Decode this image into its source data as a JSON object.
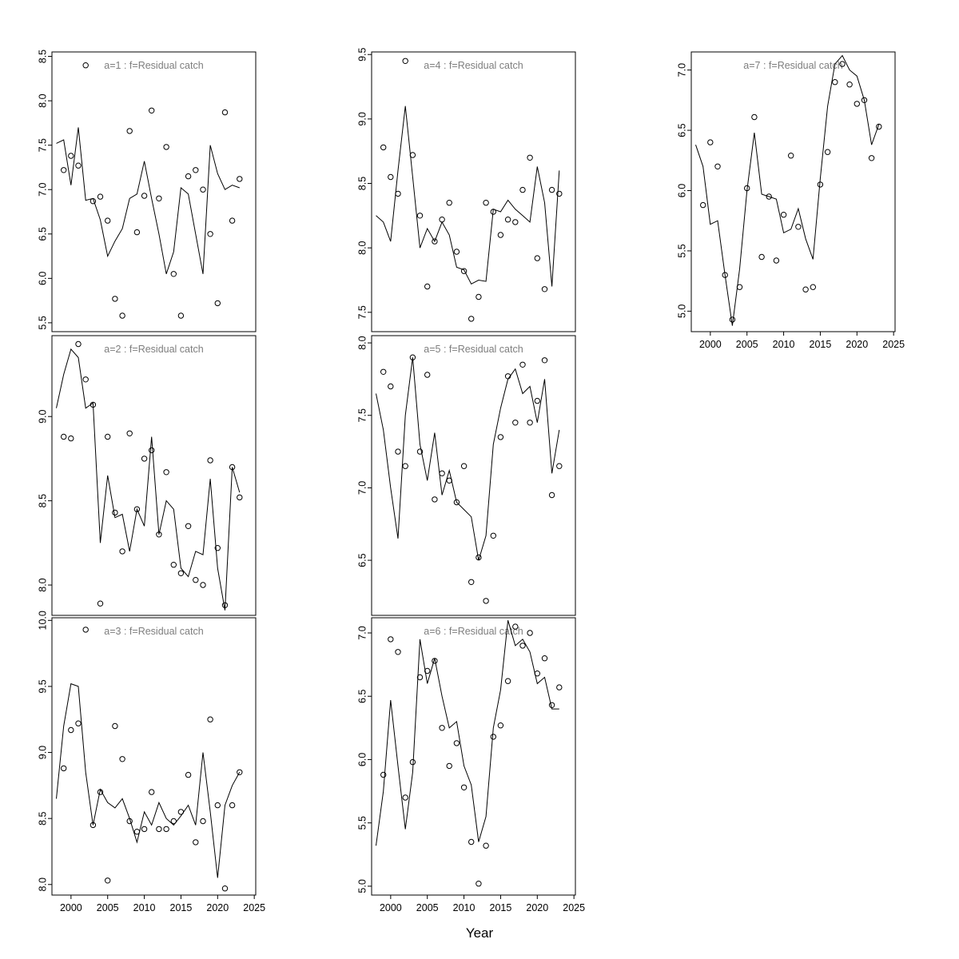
{
  "figure": {
    "xlabel": "Year"
  },
  "chart_data": {
    "type": "line",
    "marker": "open-circle",
    "line_color": "#000000",
    "point_color": "#000000",
    "title_color": "#7e7e7e",
    "grid": false,
    "xlabel": "Year",
    "xlim": [
      1997.4,
      2025.2
    ],
    "xticks": [
      2000,
      2005,
      2010,
      2015,
      2020,
      2025
    ],
    "point_years": [
      1999,
      2000,
      2001,
      2002,
      2003,
      2004,
      2005,
      2006,
      2007,
      2008,
      2009,
      2010,
      2011,
      2012,
      2013,
      2014,
      2015,
      2016,
      2017,
      2018,
      2019,
      2020,
      2021,
      2022,
      2023
    ],
    "line_years": [
      1998,
      1999,
      2000,
      2001,
      2002,
      2003,
      2004,
      2005,
      2006,
      2007,
      2008,
      2009,
      2010,
      2011,
      2012,
      2013,
      2014,
      2015,
      2016,
      2017,
      2018,
      2019,
      2020,
      2021,
      2022,
      2023
    ],
    "panels": [
      {
        "id": "a1",
        "title": "a=1  :  f=Residual catch",
        "row": 0,
        "col": 0,
        "x_axis": false,
        "ylim": [
          5.4,
          8.55
        ],
        "yticks": [
          5.5,
          6.0,
          6.5,
          7.0,
          7.5,
          8.0,
          8.5
        ],
        "points": [
          7.22,
          7.38,
          7.27,
          8.4,
          6.87,
          6.92,
          6.65,
          5.77,
          5.58,
          7.66,
          6.52,
          6.93,
          7.89,
          6.9,
          7.48,
          6.05,
          5.58,
          7.15,
          7.22,
          7.0,
          6.5,
          5.72,
          7.87,
          6.65,
          7.12
        ],
        "line": [
          7.52,
          7.56,
          7.05,
          7.7,
          6.88,
          6.9,
          6.66,
          6.25,
          6.42,
          6.56,
          6.9,
          6.95,
          7.32,
          6.9,
          6.5,
          6.05,
          6.3,
          7.02,
          6.95,
          6.5,
          6.05,
          7.5,
          7.18,
          7.0,
          7.05,
          7.02
        ]
      },
      {
        "id": "a2",
        "title": "a=2  :  f=Residual catch",
        "row": 1,
        "col": 0,
        "x_axis": false,
        "ylim": [
          7.82,
          9.48
        ],
        "yticks": [
          8.0,
          8.5,
          9.0
        ],
        "points": [
          8.88,
          8.87,
          9.43,
          9.22,
          9.07,
          7.89,
          8.88,
          8.43,
          8.2,
          8.9,
          8.45,
          8.75,
          8.8,
          8.3,
          8.67,
          8.12,
          8.07,
          8.35,
          8.03,
          8.0,
          8.74,
          8.22,
          7.88,
          8.7,
          8.52
        ],
        "line": [
          9.05,
          9.25,
          9.4,
          9.35,
          9.05,
          9.08,
          8.25,
          8.65,
          8.4,
          8.42,
          8.2,
          8.45,
          8.35,
          8.88,
          8.3,
          8.5,
          8.45,
          8.1,
          8.05,
          8.2,
          8.18,
          8.63,
          8.1,
          7.85,
          8.7,
          8.55
        ]
      },
      {
        "id": "a3",
        "title": "a=3  :  f=Residual catch",
        "row": 2,
        "col": 0,
        "x_axis": true,
        "ylim": [
          7.92,
          10.02
        ],
        "yticks": [
          8.0,
          8.5,
          9.0,
          9.5,
          10.0
        ],
        "points": [
          8.88,
          9.17,
          9.22,
          9.93,
          8.45,
          8.7,
          8.03,
          9.2,
          8.95,
          8.48,
          8.4,
          8.42,
          8.7,
          8.42,
          8.42,
          8.48,
          8.55,
          8.83,
          8.32,
          8.48,
          9.25,
          8.6,
          7.97,
          8.6,
          8.85
        ],
        "line": [
          8.65,
          9.2,
          9.52,
          9.5,
          8.85,
          8.45,
          8.72,
          8.62,
          8.58,
          8.65,
          8.5,
          8.32,
          8.55,
          8.45,
          8.62,
          8.5,
          8.45,
          8.52,
          8.6,
          8.45,
          9.0,
          8.55,
          8.05,
          8.6,
          8.75,
          8.85
        ]
      },
      {
        "id": "a4",
        "title": "a=4  :  f=Residual catch",
        "row": 0,
        "col": 1,
        "x_axis": false,
        "ylim": [
          7.35,
          9.52
        ],
        "yticks": [
          7.5,
          8.0,
          8.5,
          9.0,
          9.5
        ],
        "points": [
          8.78,
          8.55,
          8.42,
          9.45,
          8.72,
          8.25,
          7.7,
          8.05,
          8.22,
          8.35,
          7.97,
          7.82,
          7.45,
          7.62,
          8.35,
          8.28,
          8.1,
          8.22,
          8.2,
          8.45,
          8.7,
          7.92,
          7.68,
          8.45,
          8.42
        ],
        "line": [
          8.25,
          8.2,
          8.05,
          8.6,
          9.1,
          8.55,
          8.0,
          8.15,
          8.05,
          8.2,
          8.1,
          7.85,
          7.83,
          7.72,
          7.75,
          7.74,
          8.3,
          8.28,
          8.37,
          8.3,
          8.25,
          8.2,
          8.63,
          8.35,
          7.7,
          8.6
        ]
      },
      {
        "id": "a5",
        "title": "a=5  :  f=Residual catch",
        "row": 1,
        "col": 1,
        "x_axis": false,
        "ylim": [
          6.12,
          8.05
        ],
        "yticks": [
          6.5,
          7.0,
          7.5,
          8.0
        ],
        "points": [
          7.8,
          7.7,
          7.25,
          7.15,
          7.9,
          7.25,
          7.78,
          6.92,
          7.1,
          7.05,
          6.9,
          7.15,
          6.35,
          6.52,
          6.22,
          6.67,
          7.35,
          7.77,
          7.45,
          7.85,
          7.45,
          7.6,
          7.88,
          6.95,
          7.15
        ],
        "line": [
          7.65,
          7.4,
          7.0,
          6.65,
          7.5,
          7.9,
          7.3,
          7.05,
          7.38,
          6.95,
          7.12,
          6.9,
          6.85,
          6.8,
          6.5,
          6.67,
          7.3,
          7.55,
          7.75,
          7.82,
          7.65,
          7.7,
          7.45,
          7.75,
          7.1,
          7.4
        ]
      },
      {
        "id": "a6",
        "title": "a=6  :  f=Residual catch",
        "row": 2,
        "col": 1,
        "x_axis": true,
        "ylim": [
          4.93,
          7.12
        ],
        "yticks": [
          5.0,
          5.5,
          6.0,
          6.5,
          7.0
        ],
        "points": [
          5.88,
          6.95,
          6.85,
          5.7,
          5.98,
          6.65,
          6.7,
          6.78,
          6.25,
          5.95,
          6.13,
          5.78,
          5.35,
          5.02,
          5.32,
          6.18,
          6.27,
          6.62,
          7.05,
          6.9,
          7.0,
          6.68,
          6.8,
          6.43,
          6.57
        ],
        "line": [
          5.32,
          5.75,
          6.47,
          5.95,
          5.45,
          5.9,
          6.95,
          6.6,
          6.8,
          6.5,
          6.25,
          6.3,
          5.95,
          5.8,
          5.35,
          5.55,
          6.25,
          6.55,
          7.1,
          6.9,
          6.95,
          6.85,
          6.6,
          6.65,
          6.4,
          6.4
        ]
      },
      {
        "id": "a7",
        "title": "a=7  :  f=Residual catch",
        "row": 0,
        "col": 2,
        "x_axis": true,
        "ylim": [
          4.83,
          7.15
        ],
        "yticks": [
          5.0,
          5.5,
          6.0,
          6.5,
          7.0
        ],
        "points": [
          5.88,
          6.4,
          6.2,
          5.3,
          4.93,
          5.2,
          6.02,
          6.61,
          5.45,
          5.95,
          5.42,
          5.8,
          6.29,
          5.7,
          5.18,
          5.2,
          6.05,
          6.32,
          6.9,
          7.05,
          6.88,
          6.72,
          6.75,
          6.27,
          6.53
        ],
        "line": [
          6.38,
          6.2,
          5.72,
          5.75,
          5.3,
          4.88,
          5.35,
          6.0,
          6.48,
          5.97,
          5.95,
          5.93,
          5.65,
          5.68,
          5.85,
          5.6,
          5.43,
          6.1,
          6.7,
          7.05,
          7.12,
          7.0,
          6.95,
          6.75,
          6.38,
          6.55
        ]
      }
    ]
  }
}
